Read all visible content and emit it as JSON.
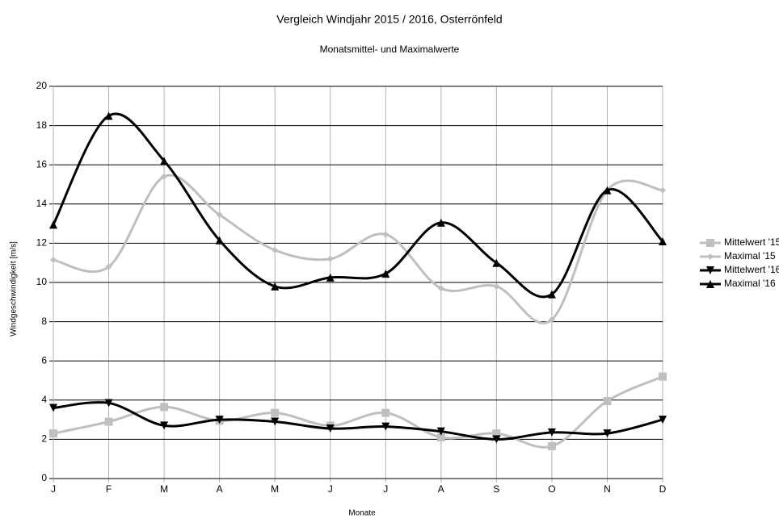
{
  "chart_data": {
    "type": "line",
    "title": "Vergleich Windjahr 2015 / 2016, Osterrönfeld",
    "subtitle": "Monatsmittel- und Maximalwerte",
    "x_label": "Monate",
    "y_label": "Windgeschwindigkeit [m/s]",
    "categories": [
      "J",
      "F",
      "M",
      "A",
      "M",
      "J",
      "J",
      "A",
      "S",
      "O",
      "N",
      "D"
    ],
    "ylim": [
      0,
      20
    ],
    "yticks": [
      0,
      2,
      4,
      6,
      8,
      10,
      12,
      14,
      16,
      18,
      20
    ],
    "grid": true,
    "smooth": true,
    "legend": "right",
    "series": [
      {
        "name": "Mittelwert '15",
        "color": "#bfbfbf",
        "marker": "square",
        "values": [
          2.3,
          2.9,
          3.65,
          2.95,
          3.35,
          2.7,
          3.35,
          2.1,
          2.3,
          1.65,
          3.95,
          5.2
        ]
      },
      {
        "name": "Maximal '15",
        "color": "#bfbfbf",
        "marker": "diamond",
        "values": [
          11.15,
          10.8,
          15.4,
          13.45,
          11.65,
          11.2,
          12.45,
          9.7,
          9.8,
          8.1,
          14.7,
          14.7
        ]
      },
      {
        "name": "Mittelwert '16",
        "color": "#000000",
        "marker": "triangle-down",
        "values": [
          3.6,
          3.85,
          2.7,
          3.0,
          2.9,
          2.55,
          2.65,
          2.4,
          2.0,
          2.35,
          2.3,
          3.0
        ]
      },
      {
        "name": "Maximal '16",
        "color": "#000000",
        "marker": "triangle-up",
        "values": [
          12.95,
          18.5,
          16.2,
          12.15,
          9.8,
          10.25,
          10.45,
          13.05,
          11.0,
          9.4,
          14.7,
          12.1
        ]
      }
    ]
  }
}
